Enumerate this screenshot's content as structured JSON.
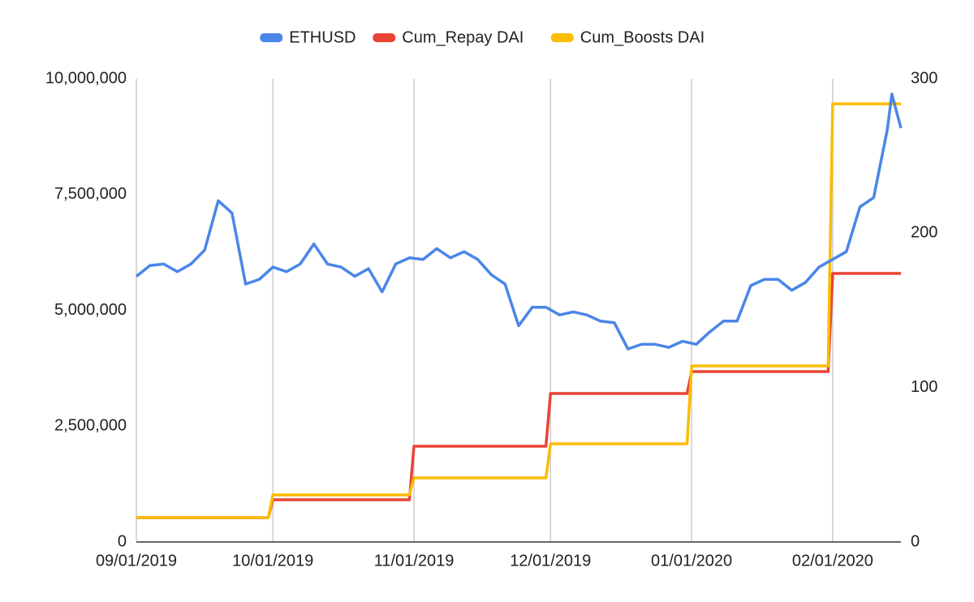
{
  "chart_data": {
    "type": "line",
    "xticks": [
      "09/01/2019",
      "10/01/2019",
      "11/01/2019",
      "12/01/2019",
      "01/01/2020",
      "02/01/2020"
    ],
    "xlim": [
      "09/01/2019",
      "02/16/2020"
    ],
    "ylim": [
      0,
      10000000
    ],
    "yticks": [
      0,
      {
        "value": 2500000,
        "label": "2,500,000"
      },
      {
        "value": 5000000,
        "label": "5,000,000"
      },
      {
        "value": 7500000,
        "label": "7,500,000"
      },
      {
        "value": 10000000,
        "label": "10,000,000"
      }
    ],
    "y2lim": [
      0,
      300
    ],
    "y2ticks": [
      0,
      100,
      200,
      300
    ],
    "grid": true,
    "legend": "top",
    "series": [
      {
        "name": "ETHUSD",
        "color": "#4a86e8",
        "axis": "y2",
        "x": [
          "09/01/2019",
          "09/04/2019",
          "09/07/2019",
          "09/10/2019",
          "09/13/2019",
          "09/16/2019",
          "09/19/2019",
          "09/22/2019",
          "09/25/2019",
          "09/28/2019",
          "10/01/2019",
          "10/04/2019",
          "10/07/2019",
          "10/10/2019",
          "10/13/2019",
          "10/16/2019",
          "10/19/2019",
          "10/22/2019",
          "10/25/2019",
          "10/28/2019",
          "10/31/2019",
          "11/03/2019",
          "11/06/2019",
          "11/09/2019",
          "11/12/2019",
          "11/15/2019",
          "11/18/2019",
          "11/21/2019",
          "11/24/2019",
          "11/27/2019",
          "11/30/2019",
          "12/03/2019",
          "12/06/2019",
          "12/09/2019",
          "12/12/2019",
          "12/15/2019",
          "12/18/2019",
          "12/21/2019",
          "12/24/2019",
          "12/27/2019",
          "12/30/2019",
          "01/02/2020",
          "01/05/2020",
          "01/08/2020",
          "01/11/2020",
          "01/14/2020",
          "01/17/2020",
          "01/20/2020",
          "01/23/2020",
          "01/26/2020",
          "01/29/2020",
          "02/01/2020",
          "02/04/2020",
          "02/07/2020",
          "02/10/2020",
          "02/13/2020",
          "02/14/2020",
          "02/16/2020"
        ],
        "values": [
          172,
          179,
          180,
          175,
          180,
          189,
          221,
          213,
          167,
          170,
          178,
          175,
          180,
          193,
          180,
          178,
          172,
          177,
          162,
          180,
          184,
          183,
          190,
          184,
          188,
          183,
          173,
          167,
          140,
          152,
          152,
          147,
          149,
          147,
          143,
          142,
          125,
          128,
          128,
          126,
          130,
          128,
          136,
          143,
          143,
          166,
          170,
          170,
          163,
          168,
          178,
          183,
          188,
          217,
          223,
          267,
          290,
          268
        ]
      },
      {
        "name": "Cum_Repay DAI",
        "color": "#ea4335",
        "x": [
          "09/01/2019",
          "09/30/2019",
          "10/01/2019",
          "10/31/2019",
          "11/01/2019",
          "11/30/2019",
          "12/01/2019",
          "12/31/2019",
          "01/01/2020",
          "01/31/2020",
          "02/01/2020",
          "02/16/2020"
        ],
        "values": [
          525000,
          525000,
          910000,
          910000,
          2066000,
          2066000,
          3205000,
          3205000,
          3678000,
          3678000,
          5797000,
          5797000
        ]
      },
      {
        "name": "Cum_Boosts DAI",
        "color": "#fbbc04",
        "x": [
          "09/01/2019",
          "09/30/2019",
          "10/01/2019",
          "10/31/2019",
          "11/01/2019",
          "11/30/2019",
          "12/01/2019",
          "12/31/2019",
          "01/01/2020",
          "01/31/2020",
          "02/01/2020",
          "02/16/2020"
        ],
        "values": [
          525000,
          525000,
          1016000,
          1016000,
          1384000,
          1384000,
          2119000,
          2119000,
          3800000,
          3800000,
          9457000,
          9457000
        ]
      }
    ]
  }
}
